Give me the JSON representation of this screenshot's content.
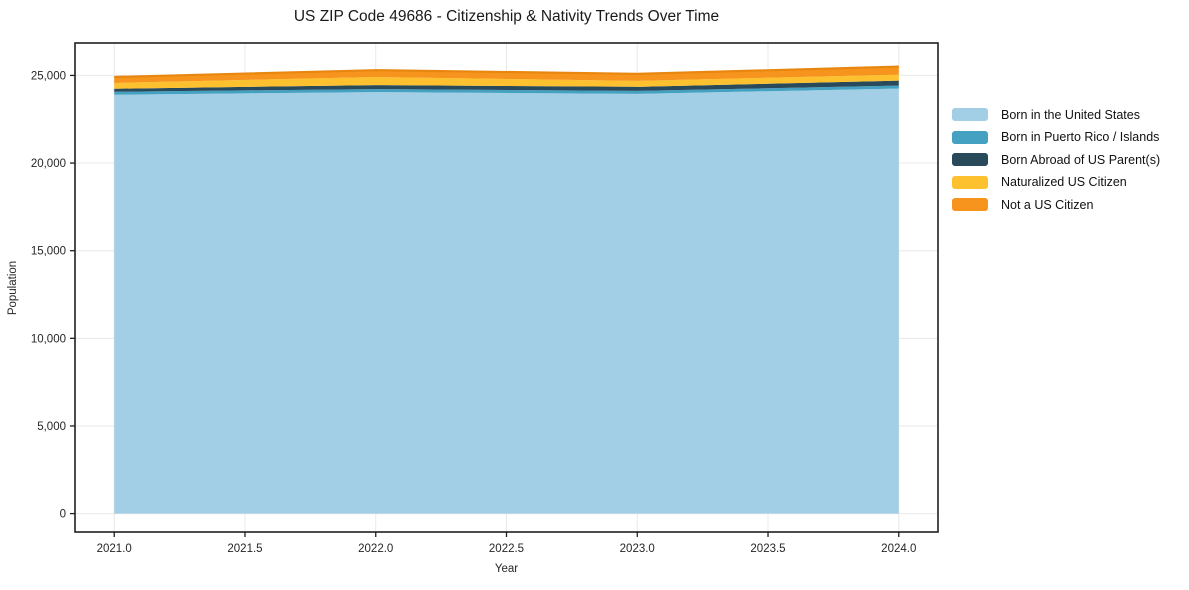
{
  "chart_data": {
    "type": "area",
    "stacked": true,
    "title": "US ZIP Code 49686 - Citizenship & Nativity Trends Over Time",
    "xlabel": "Year",
    "ylabel": "Population",
    "x": [
      2021,
      2022,
      2023,
      2024
    ],
    "series": [
      {
        "name": "Born in the United States",
        "color": "#a3cfe6",
        "values": [
          23900,
          24050,
          23950,
          24250
        ]
      },
      {
        "name": "Born in Puerto Rico / Islands",
        "color": "#45a1c1",
        "values": [
          170,
          170,
          170,
          170
        ]
      },
      {
        "name": "Born Abroad of US Parent(s)",
        "color": "#294a5b",
        "values": [
          170,
          230,
          230,
          280
        ]
      },
      {
        "name": "Naturalized US Citizen",
        "color": "#fdc12f",
        "values": [
          330,
          460,
          340,
          340
        ]
      },
      {
        "name": "Not a US Citizen",
        "color": "#f7941e",
        "values": [
          340,
          390,
          400,
          460
        ]
      }
    ],
    "x_ticks": [
      "2021.0",
      "2021.5",
      "2022.0",
      "2022.5",
      "2023.0",
      "2023.5",
      "2024.0"
    ],
    "x_tick_values": [
      2021,
      2021.5,
      2022,
      2022.5,
      2023,
      2023.5,
      2024
    ],
    "y_ticks": [
      "0",
      "5,000",
      "10,000",
      "15,000",
      "20,000",
      "25,000"
    ],
    "y_tick_values": [
      0,
      5000,
      10000,
      15000,
      20000,
      25000
    ],
    "xlim": [
      2020.85,
      2024.15
    ],
    "ylim": [
      -1050,
      26850
    ],
    "grid": true,
    "legend_position": "right-outside"
  },
  "chart_style": {
    "background": "#ffffff",
    "grid_color": "#e8e8e8",
    "spine_color": "#1f1f1f",
    "text_color": "#262626",
    "outer_edge_color": "#e8870f"
  }
}
